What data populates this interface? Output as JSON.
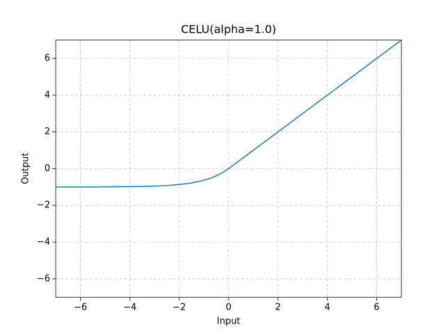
{
  "chart_data": {
    "type": "line",
    "title": "CELU(alpha=1.0)",
    "x_label": "Input",
    "y_label": "Output",
    "x": [
      -7,
      -6,
      -5,
      -4,
      -3,
      -2.5,
      -2,
      -1.5,
      -1,
      -0.75,
      -0.5,
      -0.25,
      0,
      1,
      2,
      3,
      4,
      5,
      6,
      7
    ],
    "series": [
      {
        "color": "#1f77b4",
        "values": [
          -1.0,
          -1.0,
          -0.99,
          -0.98,
          -0.95,
          -0.92,
          -0.86,
          -0.78,
          -0.63,
          -0.53,
          -0.39,
          -0.22,
          0,
          1,
          2,
          3,
          4,
          5,
          6,
          7
        ]
      }
    ],
    "xlim": [
      -7,
      7
    ],
    "ylim": [
      -7,
      7
    ],
    "xticks": [
      {
        "value": -6,
        "label": "−6"
      },
      {
        "value": -4,
        "label": "−4"
      },
      {
        "value": -2,
        "label": "−2"
      },
      0,
      2,
      4,
      6
    ],
    "yticks": [
      {
        "value": -6,
        "label": "−6"
      },
      {
        "value": -4,
        "label": "−4"
      },
      {
        "value": -2,
        "label": "−2"
      },
      0,
      2,
      4,
      6
    ],
    "grid": true
  }
}
